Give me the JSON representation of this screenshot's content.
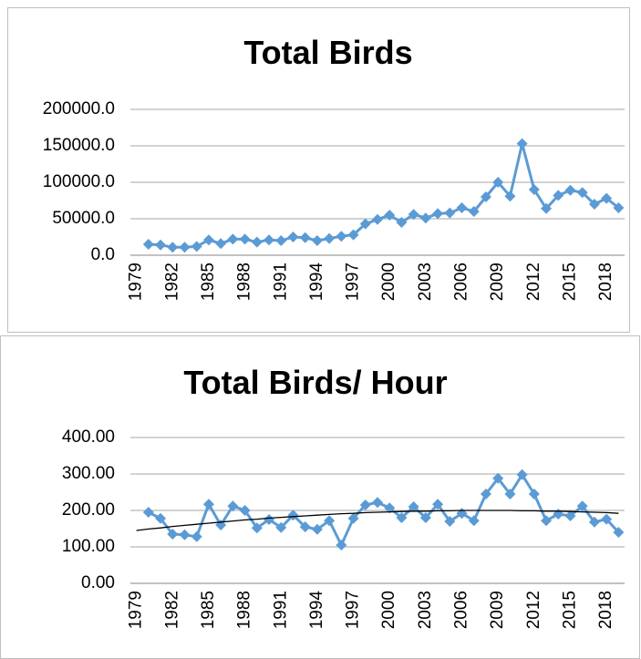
{
  "chart_data": [
    {
      "type": "line",
      "title": "Total Birds",
      "categories": [
        "1979",
        null,
        null,
        "1982",
        null,
        null,
        "1985",
        null,
        null,
        "1988",
        null,
        null,
        "1991",
        null,
        null,
        "1994",
        null,
        null,
        "1997",
        null,
        null,
        "2000",
        null,
        null,
        "2003",
        null,
        null,
        "2006",
        null,
        null,
        "2009",
        null,
        null,
        "2012",
        null,
        null,
        "2015",
        null,
        null,
        "2018",
        null
      ],
      "series": [
        {
          "color": "#5b9bd5",
          "values": [
            null,
            15000,
            14000,
            11000,
            11000,
            12000,
            21000,
            16000,
            22000,
            22000,
            18000,
            21000,
            20000,
            25000,
            24000,
            20000,
            23000,
            26000,
            28000,
            43000,
            49000,
            55000,
            45000,
            56000,
            51000,
            57000,
            58000,
            65000,
            60000,
            80000,
            100000,
            81000,
            153000,
            90000,
            64000,
            82000,
            89000,
            86000,
            70000,
            78000,
            65000
          ]
        }
      ],
      "ylim": [
        0,
        200000
      ],
      "yticks": [
        {
          "value": 0,
          "label": "0.0"
        },
        {
          "value": 50000,
          "label": "50000.0"
        },
        {
          "value": 100000,
          "label": "100000.0"
        },
        {
          "value": 150000,
          "label": "150000.0"
        },
        {
          "value": 200000,
          "label": "200000.0"
        }
      ],
      "grid": true
    },
    {
      "type": "line",
      "title": "Total Birds/ Hour",
      "categories": [
        "1979",
        null,
        null,
        "1982",
        null,
        null,
        "1985",
        null,
        null,
        "1988",
        null,
        null,
        "1991",
        null,
        null,
        "1994",
        null,
        null,
        "1997",
        null,
        null,
        "2000",
        null,
        null,
        "2003",
        null,
        null,
        "2006",
        null,
        null,
        "2009",
        null,
        null,
        "2012",
        null,
        null,
        "2015",
        null,
        null,
        "2018",
        null
      ],
      "series": [
        {
          "color": "#5b9bd5",
          "values": [
            null,
            195,
            178,
            135,
            133,
            128,
            217,
            160,
            212,
            200,
            152,
            175,
            153,
            187,
            155,
            148,
            172,
            105,
            178,
            215,
            222,
            207,
            180,
            210,
            180,
            217,
            170,
            192,
            172,
            245,
            288,
            245,
            298,
            245,
            172,
            190,
            185,
            212,
            168,
            176,
            140
          ]
        },
        {
          "color": "#000000",
          "markers": false,
          "values": [
            145,
            149,
            152,
            156,
            159,
            162,
            165,
            168,
            171,
            174,
            176,
            179,
            181,
            183,
            185,
            187,
            189,
            191,
            192,
            194,
            195,
            196,
            197,
            198,
            198,
            199,
            199,
            200,
            200,
            200,
            200,
            200,
            199,
            199,
            198,
            198,
            197,
            196,
            195,
            194,
            192
          ]
        }
      ],
      "ylim": [
        0,
        400
      ],
      "yticks": [
        {
          "value": 0,
          "label": "0.00"
        },
        {
          "value": 100,
          "label": "100.00"
        },
        {
          "value": 200,
          "label": "200.00"
        },
        {
          "value": 300,
          "label": "300.00"
        },
        {
          "value": 400,
          "label": "400.00"
        }
      ],
      "grid": true
    }
  ]
}
